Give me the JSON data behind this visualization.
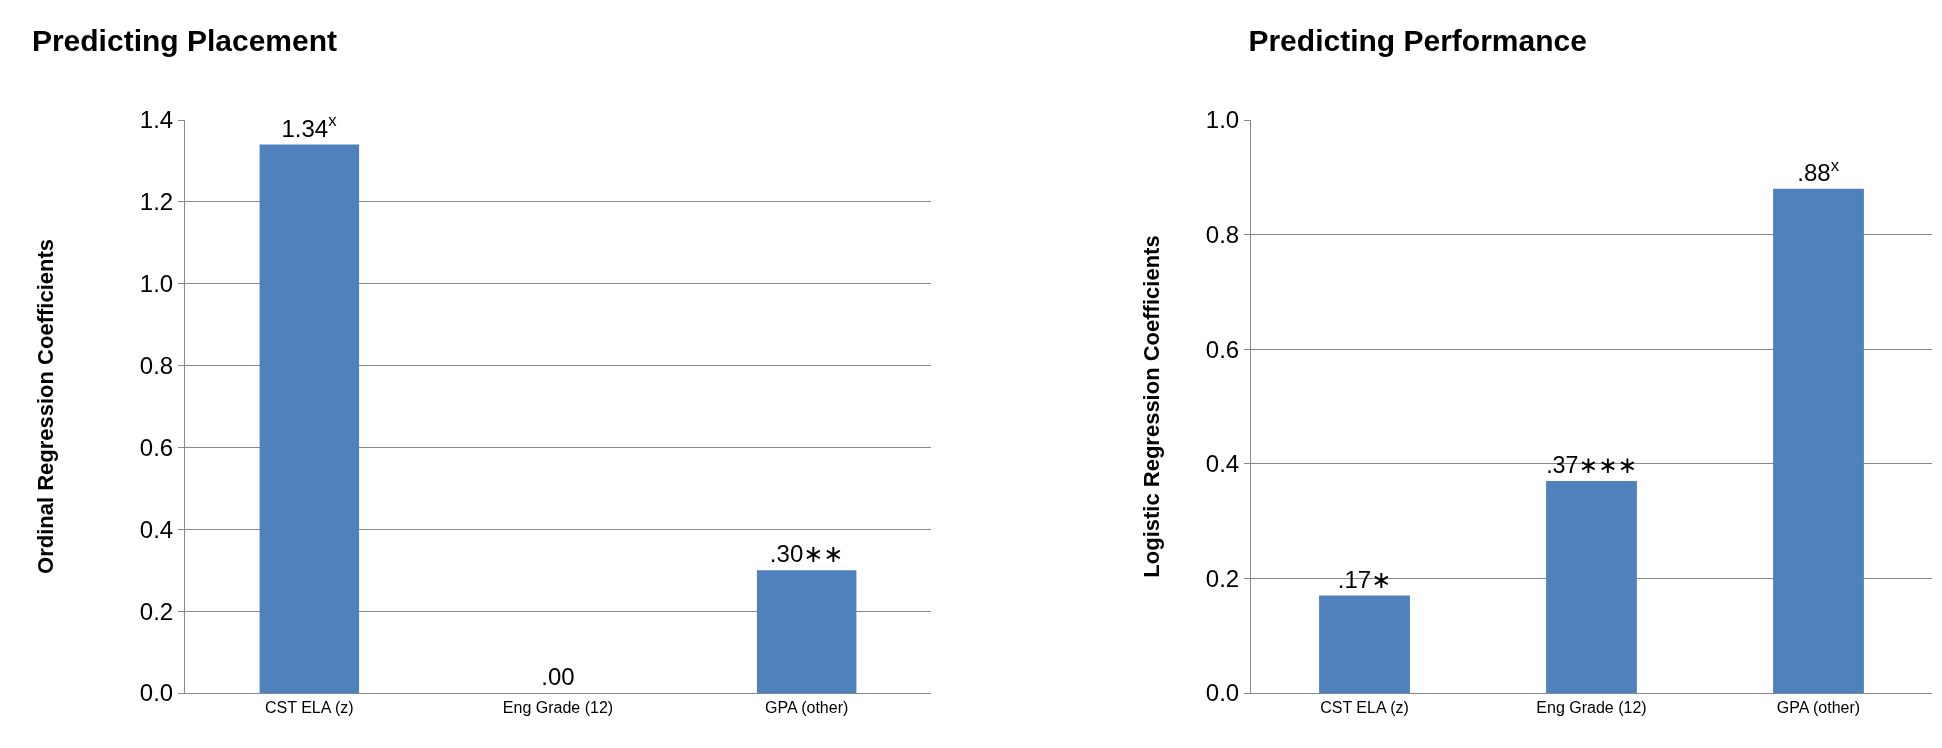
{
  "chart_data": [
    {
      "type": "bar",
      "title": "Predicting Placement",
      "ylabel": "Ordinal Regression Coefficients",
      "categories": [
        "CST ELA (z)",
        "Eng Grade (12)",
        "GPA (other)"
      ],
      "values": [
        1.34,
        0.0,
        0.3
      ],
      "color": "#4f81bd",
      "value_labels": [
        "1.34$^{x}$",
        ".00",
        ".30∗∗"
      ],
      "ylim": [
        0,
        1.4
      ],
      "yticks": [
        {
          "value": 0,
          "label": "0.0"
        },
        {
          "value": 0.2,
          "label": "0.2"
        },
        {
          "value": 0.4,
          "label": "0.4"
        },
        {
          "value": 0.6,
          "label": "0.6"
        },
        {
          "value": 0.8,
          "label": "0.8"
        },
        {
          "value": 1,
          "label": "1.0"
        },
        {
          "value": 1.2,
          "label": "1.2"
        },
        {
          "value": 1.4,
          "label": "1.4"
        }
      ],
      "grid": "y",
      "legend": false
    },
    {
      "type": "bar",
      "title": "Predicting Performance",
      "ylabel": "Logistic Regression Coefficients",
      "categories": [
        "CST ELA (z)",
        "Eng Grade (12)",
        "GPA (other)"
      ],
      "values": [
        0.17,
        0.37,
        0.88
      ],
      "color": "#4f81bd",
      "value_labels": [
        ".17∗",
        ".37∗∗∗",
        ".88$^{x}$"
      ],
      "ylim": [
        0,
        1
      ],
      "yticks": [
        {
          "value": 0,
          "label": "0.0"
        },
        {
          "value": 0.2,
          "label": "0.2"
        },
        {
          "value": 0.4,
          "label": "0.4"
        },
        {
          "value": 0.6,
          "label": "0.6"
        },
        {
          "value": 0.8,
          "label": "0.8"
        },
        {
          "value": 1,
          "label": "1.0"
        }
      ],
      "grid": "y",
      "legend": false
    }
  ]
}
